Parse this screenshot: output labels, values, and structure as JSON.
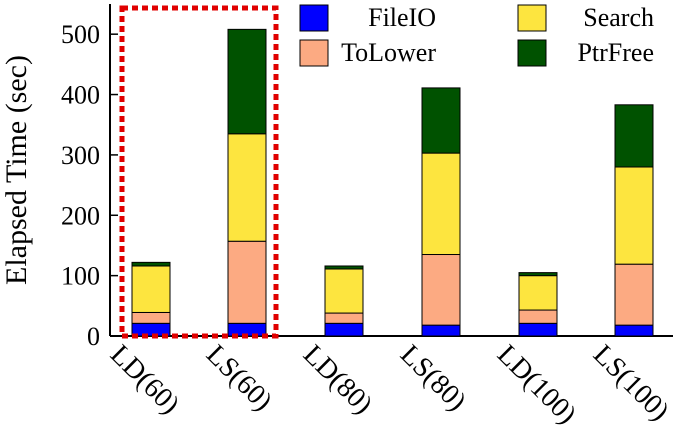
{
  "chart_data": {
    "type": "bar",
    "stacked": true,
    "title": "",
    "xlabel": "",
    "ylabel": "Elapsed Time (sec)",
    "ylim": [
      0,
      550
    ],
    "yticks": [
      0,
      100,
      200,
      300,
      400,
      500
    ],
    "categories": [
      "LD(60)",
      "LS(60)",
      "LD(80)",
      "LS(80)",
      "LD(100)",
      "LS(100)"
    ],
    "series": [
      {
        "name": "FileIO",
        "color": "#0000ff",
        "values": [
          21,
          21,
          21,
          18,
          21,
          18
        ]
      },
      {
        "name": "ToLower",
        "color": "#fcaa82",
        "values": [
          18,
          136,
          17,
          117,
          22,
          101
        ]
      },
      {
        "name": "Search",
        "color": "#fde53f",
        "values": [
          77,
          178,
          73,
          168,
          57,
          161
        ]
      },
      {
        "name": "PtrFree",
        "color": "#005200",
        "values": [
          6,
          173,
          5,
          108,
          5,
          103
        ]
      }
    ],
    "legend": {
      "position": "top",
      "columns": 2,
      "order": [
        "FileIO",
        "Search",
        "ToLower",
        "PtrFree"
      ]
    },
    "highlight": {
      "style": "dashed-rectangle",
      "color": "#e00000",
      "categories": [
        "LD(60)",
        "LS(60)"
      ]
    },
    "grid": false
  }
}
